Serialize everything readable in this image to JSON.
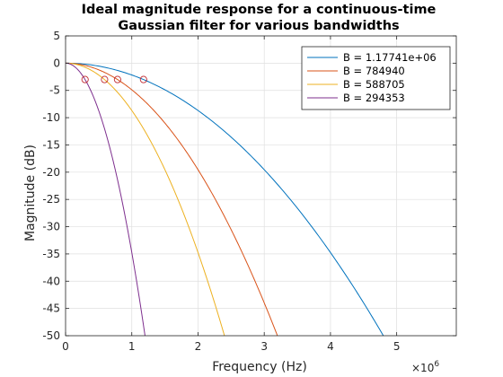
{
  "chart_data": {
    "type": "line",
    "title": [
      "Ideal magnitude response for a continuous-time",
      "Gaussian filter for various bandwidths"
    ],
    "xlabel": "Frequency (Hz)",
    "ylabel": "Magnitude (dB)",
    "x_exponent_label": "×10",
    "x_exponent_power": "6",
    "xlim": [
      0,
      5900000
    ],
    "ylim": [
      -50,
      5
    ],
    "x_ticks": [
      0,
      1000000,
      2000000,
      3000000,
      4000000,
      5000000
    ],
    "x_tick_labels": [
      "0",
      "1",
      "2",
      "3",
      "4",
      "5"
    ],
    "y_ticks": [
      5,
      0,
      -5,
      -10,
      -15,
      -20,
      -25,
      -30,
      -35,
      -40,
      -45,
      -50
    ],
    "y_tick_labels": [
      "5",
      "0",
      "-5",
      "-10",
      "-15",
      "-20",
      "-25",
      "-30",
      "-35",
      "-40",
      "-45",
      "-50"
    ],
    "grid": true,
    "legend_position": "top-right",
    "series": [
      {
        "name": "B = 1.17741e+06",
        "bandwidth": 1177410,
        "color": "#0072BD"
      },
      {
        "name": "B = 784940",
        "bandwidth": 784940,
        "color": "#D95319"
      },
      {
        "name": "B = 588705",
        "bandwidth": 588705,
        "color": "#EDB120"
      },
      {
        "name": "B = 294353",
        "bandwidth": 294353,
        "color": "#7E2F8E"
      }
    ],
    "markers": {
      "style": "circle",
      "color": "#C0282E",
      "points": [
        {
          "x": 294353,
          "y": -3
        },
        {
          "x": 588705,
          "y": -3
        },
        {
          "x": 784940,
          "y": -3
        },
        {
          "x": 1177410,
          "y": -3
        }
      ]
    }
  }
}
